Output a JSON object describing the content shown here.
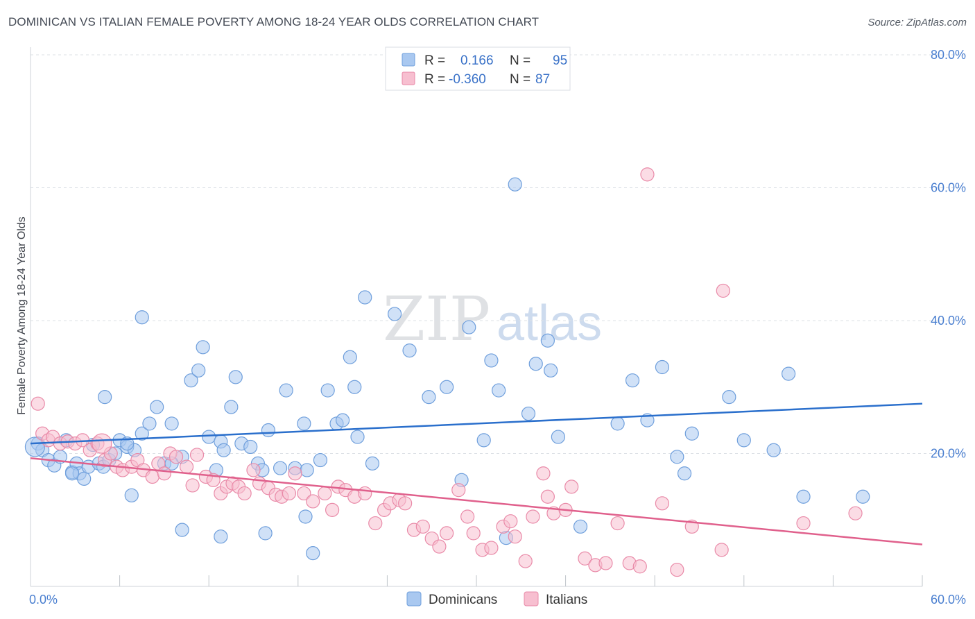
{
  "title": "DOMINICAN VS ITALIAN FEMALE POVERTY AMONG 18-24 YEAR OLDS CORRELATION CHART",
  "source": "Source: ZipAtlas.com",
  "watermark": {
    "zip": "ZIP",
    "atlas": "atlas"
  },
  "colors": {
    "dominican_fill": "#a9c8f0",
    "dominican_stroke": "#6f9fdc",
    "dominican_line": "#2a6fcc",
    "italian_fill": "#f7bfd0",
    "italian_stroke": "#e98aa8",
    "italian_line": "#e0608c",
    "tick_label": "#4a7fd0"
  },
  "legend": {
    "row1": {
      "r_label": "R =",
      "r_value": "0.166",
      "n_label": "N =",
      "n_value": "95"
    },
    "row2": {
      "r_label": "R =",
      "r_value": "-0.360",
      "n_label": "N =",
      "n_value": "87"
    }
  },
  "chart_data": {
    "type": "scatter",
    "title": "DOMINICAN VS ITALIAN FEMALE POVERTY AMONG 18-24 YEAR OLDS CORRELATION CHART",
    "xlabel": "",
    "ylabel": "Female Poverty Among 18-24 Year Olds",
    "xlim": [
      0,
      60
    ],
    "ylim": [
      0,
      80
    ],
    "x_tick_labels": [
      "0.0%",
      "60.0%"
    ],
    "y_tick_labels": [
      "20.0%",
      "40.0%",
      "60.0%",
      "80.0%"
    ],
    "y_ticks": [
      20,
      40,
      60,
      80
    ],
    "grid": "horizontal dashed",
    "legend_position": "top-center",
    "series": [
      {
        "name": "Dominicans",
        "R": 0.166,
        "N": 95,
        "trend": {
          "x": [
            0,
            60
          ],
          "y": [
            21.5,
            27.5
          ]
        },
        "points": [
          [
            0.5,
            21.5
          ],
          [
            0.8,
            20.5
          ],
          [
            1.2,
            19.0
          ],
          [
            1.6,
            18.2
          ],
          [
            2.0,
            19.5
          ],
          [
            2.4,
            22.0
          ],
          [
            2.8,
            17.2
          ],
          [
            3.1,
            18.5
          ],
          [
            3.3,
            17.0
          ],
          [
            3.6,
            16.2
          ],
          [
            3.9,
            18.0
          ],
          [
            4.2,
            21.3
          ],
          [
            4.6,
            18.5
          ],
          [
            4.9,
            18.0
          ],
          [
            5.3,
            19.0
          ],
          [
            5.0,
            28.5
          ],
          [
            5.7,
            20.0
          ],
          [
            6.0,
            22.0
          ],
          [
            6.5,
            21.0
          ],
          [
            7.0,
            20.5
          ],
          [
            7.5,
            23.0
          ],
          [
            6.8,
            13.7
          ],
          [
            7.5,
            40.5
          ],
          [
            8.0,
            24.5
          ],
          [
            8.5,
            27.0
          ],
          [
            9.0,
            18.5
          ],
          [
            9.5,
            24.5
          ],
          [
            10.2,
            19.5
          ],
          [
            10.8,
            31.0
          ],
          [
            11.3,
            32.5
          ],
          [
            11.6,
            36.0
          ],
          [
            12.0,
            22.5
          ],
          [
            12.5,
            17.5
          ],
          [
            12.8,
            21.8
          ],
          [
            13.0,
            20.5
          ],
          [
            13.5,
            27.0
          ],
          [
            13.8,
            31.5
          ],
          [
            14.2,
            21.5
          ],
          [
            14.8,
            21.0
          ],
          [
            15.3,
            18.5
          ],
          [
            15.6,
            17.5
          ],
          [
            16.0,
            23.5
          ],
          [
            16.8,
            17.8
          ],
          [
            17.2,
            29.5
          ],
          [
            17.8,
            17.8
          ],
          [
            18.4,
            24.5
          ],
          [
            18.6,
            17.5
          ],
          [
            19.5,
            19.0
          ],
          [
            20.0,
            29.5
          ],
          [
            20.6,
            24.5
          ],
          [
            21.0,
            25.0
          ],
          [
            21.5,
            34.5
          ],
          [
            21.8,
            30.0
          ],
          [
            22.0,
            22.5
          ],
          [
            22.5,
            43.5
          ],
          [
            23.0,
            18.5
          ],
          [
            24.5,
            41.0
          ],
          [
            25.5,
            35.5
          ],
          [
            26.8,
            28.5
          ],
          [
            28.0,
            30.0
          ],
          [
            29.0,
            16.0
          ],
          [
            29.5,
            39.0
          ],
          [
            30.5,
            22.0
          ],
          [
            31.0,
            34.0
          ],
          [
            31.5,
            29.5
          ],
          [
            32.0,
            7.3
          ],
          [
            32.6,
            60.5
          ],
          [
            33.5,
            26.0
          ],
          [
            34.0,
            33.5
          ],
          [
            34.8,
            37.0
          ],
          [
            35.0,
            32.5
          ],
          [
            35.5,
            22.5
          ],
          [
            37.0,
            9.0
          ],
          [
            39.5,
            24.5
          ],
          [
            40.5,
            31.0
          ],
          [
            41.5,
            25.0
          ],
          [
            42.5,
            33.0
          ],
          [
            43.5,
            19.5
          ],
          [
            44.0,
            17.0
          ],
          [
            44.5,
            23.0
          ],
          [
            47.0,
            28.5
          ],
          [
            48.0,
            22.0
          ],
          [
            50.0,
            20.5
          ],
          [
            51.0,
            32.0
          ],
          [
            52.0,
            13.5
          ],
          [
            56.0,
            13.5
          ],
          [
            10.2,
            8.5
          ],
          [
            12.8,
            7.5
          ],
          [
            15.8,
            8.0
          ],
          [
            18.5,
            10.5
          ],
          [
            19.0,
            5.0
          ],
          [
            9.5,
            18.5
          ],
          [
            2.8,
            17.0
          ],
          [
            6.5,
            21.5
          ],
          [
            0.3,
            21.0
          ]
        ]
      },
      {
        "name": "Italians",
        "R": -0.36,
        "N": 87,
        "trend": {
          "x": [
            0,
            60
          ],
          "y": [
            19.3,
            6.3
          ]
        },
        "points": [
          [
            0.5,
            27.5
          ],
          [
            0.8,
            23.0
          ],
          [
            1.2,
            22.0
          ],
          [
            1.5,
            22.5
          ],
          [
            2.0,
            21.5
          ],
          [
            2.5,
            21.8
          ],
          [
            3.0,
            21.5
          ],
          [
            3.5,
            22.0
          ],
          [
            4.0,
            20.5
          ],
          [
            4.5,
            21.5
          ],
          [
            5.0,
            19.0
          ],
          [
            5.4,
            20.0
          ],
          [
            5.8,
            18.0
          ],
          [
            6.2,
            17.5
          ],
          [
            6.8,
            18.0
          ],
          [
            7.2,
            19.0
          ],
          [
            7.6,
            17.5
          ],
          [
            8.2,
            16.5
          ],
          [
            8.6,
            18.5
          ],
          [
            9.0,
            17.0
          ],
          [
            9.4,
            20.0
          ],
          [
            9.8,
            19.5
          ],
          [
            10.5,
            18.0
          ],
          [
            10.9,
            15.2
          ],
          [
            11.2,
            19.8
          ],
          [
            11.8,
            16.5
          ],
          [
            12.3,
            16.0
          ],
          [
            12.8,
            14.0
          ],
          [
            13.2,
            15.0
          ],
          [
            13.6,
            15.5
          ],
          [
            14.0,
            15.0
          ],
          [
            14.4,
            14.0
          ],
          [
            15.0,
            17.5
          ],
          [
            15.4,
            15.5
          ],
          [
            16.0,
            14.8
          ],
          [
            16.5,
            13.8
          ],
          [
            16.9,
            13.5
          ],
          [
            17.4,
            14.0
          ],
          [
            17.8,
            17.0
          ],
          [
            18.4,
            14.0
          ],
          [
            19.0,
            12.8
          ],
          [
            19.8,
            14.0
          ],
          [
            20.3,
            11.5
          ],
          [
            20.7,
            15.0
          ],
          [
            21.2,
            14.5
          ],
          [
            21.8,
            13.5
          ],
          [
            22.5,
            14.0
          ],
          [
            23.2,
            9.5
          ],
          [
            23.8,
            11.5
          ],
          [
            24.2,
            12.5
          ],
          [
            24.8,
            13.0
          ],
          [
            25.2,
            12.5
          ],
          [
            25.8,
            8.5
          ],
          [
            26.4,
            9.0
          ],
          [
            27.0,
            7.2
          ],
          [
            27.5,
            6.0
          ],
          [
            28.0,
            8.0
          ],
          [
            28.8,
            14.5
          ],
          [
            29.4,
            10.5
          ],
          [
            29.8,
            8.0
          ],
          [
            30.4,
            5.5
          ],
          [
            31.0,
            5.8
          ],
          [
            31.8,
            9.0
          ],
          [
            32.3,
            9.8
          ],
          [
            32.6,
            7.5
          ],
          [
            33.3,
            3.8
          ],
          [
            33.8,
            10.5
          ],
          [
            34.5,
            17.0
          ],
          [
            34.8,
            13.5
          ],
          [
            35.2,
            11.0
          ],
          [
            36.0,
            11.5
          ],
          [
            36.4,
            15.0
          ],
          [
            37.3,
            4.2
          ],
          [
            38.0,
            3.2
          ],
          [
            38.7,
            3.5
          ],
          [
            39.5,
            9.5
          ],
          [
            40.3,
            3.5
          ],
          [
            41.0,
            3.0
          ],
          [
            41.5,
            62.0
          ],
          [
            42.5,
            12.5
          ],
          [
            43.5,
            2.5
          ],
          [
            44.5,
            9.0
          ],
          [
            46.5,
            5.5
          ],
          [
            46.6,
            44.5
          ],
          [
            52.0,
            9.5
          ],
          [
            55.5,
            11.0
          ],
          [
            4.8,
            21.5
          ]
        ]
      }
    ]
  }
}
